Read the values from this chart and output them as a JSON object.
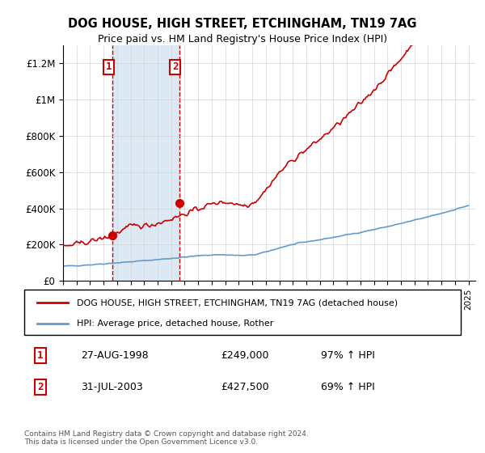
{
  "title": "DOG HOUSE, HIGH STREET, ETCHINGHAM, TN19 7AG",
  "subtitle": "Price paid vs. HM Land Registry's House Price Index (HPI)",
  "legend_line1": "DOG HOUSE, HIGH STREET, ETCHINGHAM, TN19 7AG (detached house)",
  "legend_line2": "HPI: Average price, detached house, Rother",
  "footnote": "Contains HM Land Registry data © Crown copyright and database right 2024.\nThis data is licensed under the Open Government Licence v3.0.",
  "transaction1_label": "1",
  "transaction1_date": "27-AUG-1998",
  "transaction1_price": "£249,000",
  "transaction1_hpi": "97% ↑ HPI",
  "transaction2_label": "2",
  "transaction2_date": "31-JUL-2003",
  "transaction2_price": "£427,500",
  "transaction2_hpi": "69% ↑ HPI",
  "red_color": "#cc0000",
  "blue_color": "#6699cc",
  "shaded_color": "#dde8f5",
  "ylim": [
    0,
    1300000
  ],
  "yticks": [
    0,
    200000,
    400000,
    600000,
    800000,
    1000000,
    1200000
  ],
  "ytick_labels": [
    "£0",
    "£200K",
    "£400K",
    "£600K",
    "£800K",
    "£1M",
    "£1.2M"
  ]
}
